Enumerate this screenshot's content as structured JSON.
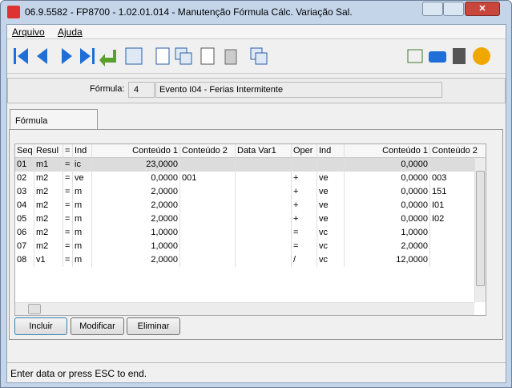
{
  "window": {
    "title": "06.9.5582 - FP8700 - 1.02.01.014 - Manutenção Fórmula Cálc. Variação Sal."
  },
  "menu": [
    "Arquivo",
    "Ajuda"
  ],
  "form": {
    "label": "Fórmula:",
    "code": "4",
    "description": "Evento I04 - Ferias Intermitente"
  },
  "tab": "Fórmula",
  "table": {
    "columns": [
      "Seq",
      "Resul",
      "=",
      "Ind",
      "Conteúdo 1",
      "Conteúdo 2",
      "Data Var1",
      "Oper",
      "Ind",
      "Conteúdo 1",
      "Conteúdo 2"
    ],
    "rows": [
      [
        "01",
        "m1",
        "=",
        "ic",
        "23,0000",
        null,
        null,
        null,
        null,
        "0,0000",
        null
      ],
      [
        "02",
        "m2",
        "=",
        "ve",
        "0,0000",
        "001",
        null,
        "+",
        "ve",
        "0,0000",
        "003"
      ],
      [
        "03",
        "m2",
        "=",
        "m",
        "2,0000",
        null,
        null,
        "+",
        "ve",
        "0,0000",
        "151"
      ],
      [
        "04",
        "m2",
        "=",
        "m",
        "2,0000",
        null,
        null,
        "+",
        "ve",
        "0,0000",
        "I01"
      ],
      [
        "05",
        "m2",
        "=",
        "m",
        "2,0000",
        null,
        null,
        "+",
        "ve",
        "0,0000",
        "I02"
      ],
      [
        "06",
        "m2",
        "=",
        "m",
        "1,0000",
        null,
        null,
        "=",
        "vc",
        "1,0000",
        null
      ],
      [
        "07",
        "m2",
        "=",
        "m",
        "1,0000",
        null,
        null,
        "=",
        "vc",
        "2,0000",
        null
      ],
      [
        "08",
        "v1",
        "=",
        "m",
        "2,0000",
        null,
        null,
        "/",
        "vc",
        "12,0000",
        null
      ]
    ]
  },
  "buttons": [
    "Incluir",
    "Modificar",
    "Eliminar"
  ],
  "status": "Enter data or press ESC to end."
}
